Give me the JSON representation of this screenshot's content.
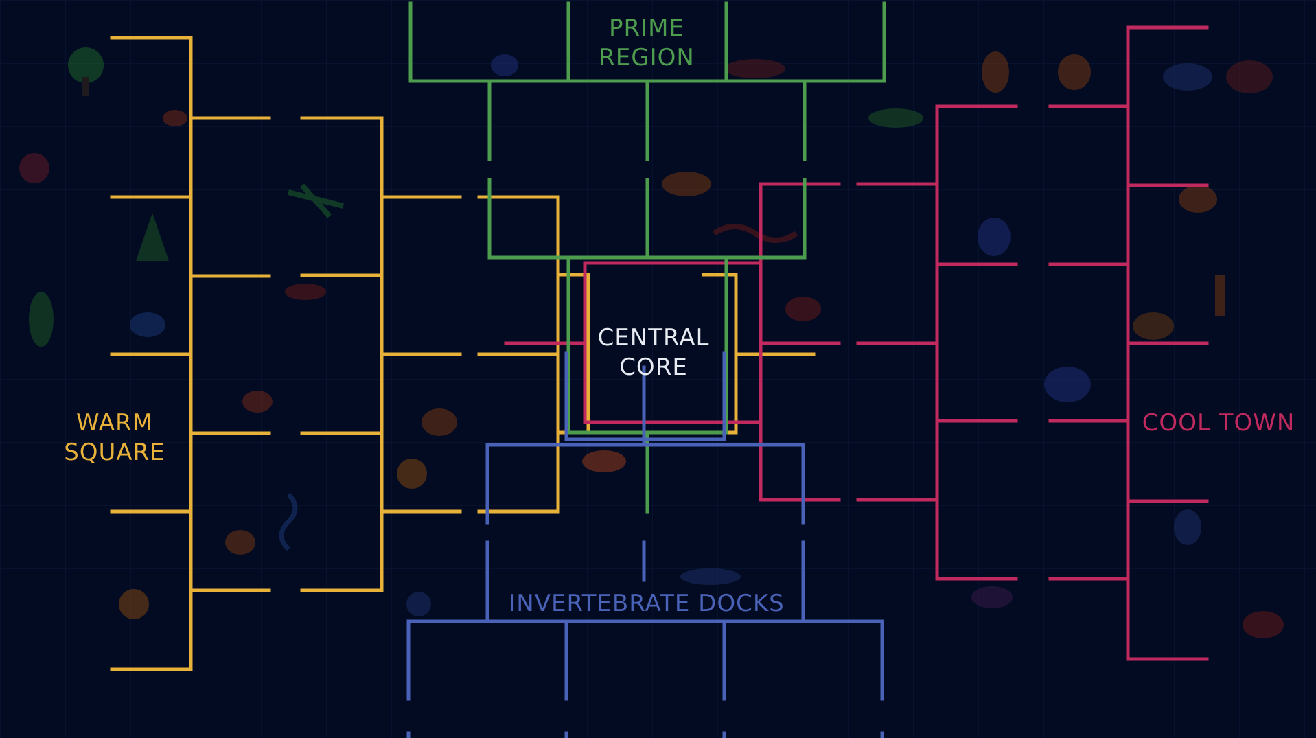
{
  "background_color": "#020b22",
  "regions": {
    "prime": {
      "title_line1": "PRIME",
      "title_line2": "REGION",
      "color": "#4e9d4e"
    },
    "warm": {
      "title_line1": "WARM",
      "title_line2": "SQUARE",
      "color": "#e8b23a"
    },
    "cool": {
      "title": "COOL TOWN",
      "color": "#c02a5e"
    },
    "invertebrate": {
      "title": "INVERTEBRATE DOCKS",
      "color": "#4a63b8"
    },
    "central": {
      "title_line1": "CENTRAL",
      "title_line2": "CORE",
      "color": "#e8ecf2"
    }
  },
  "background_creature_icons": [
    "tree-icon",
    "butterfly-icon",
    "flower-icon",
    "conifer-icon",
    "fern-icon",
    "beetle-icon",
    "dragonfly-icon",
    "shrimp-icon",
    "mushroom-icon",
    "coral-icon",
    "jellyfish-icon",
    "worm-icon",
    "snail-icon",
    "shell-icon",
    "bird-icon",
    "lizard-icon",
    "dinosaur-icon",
    "crocodile-icon",
    "turtle-icon",
    "snake-icon",
    "clownfish-icon",
    "shark-icon",
    "starfish-icon",
    "fox-icon",
    "cat-icon",
    "wolf-icon",
    "bear-icon",
    "koala-icon",
    "elephant-icon",
    "camel-icon",
    "giraffe-icon",
    "hedgehog-icon",
    "armadillo-icon",
    "lemur-icon",
    "sloth-icon"
  ]
}
